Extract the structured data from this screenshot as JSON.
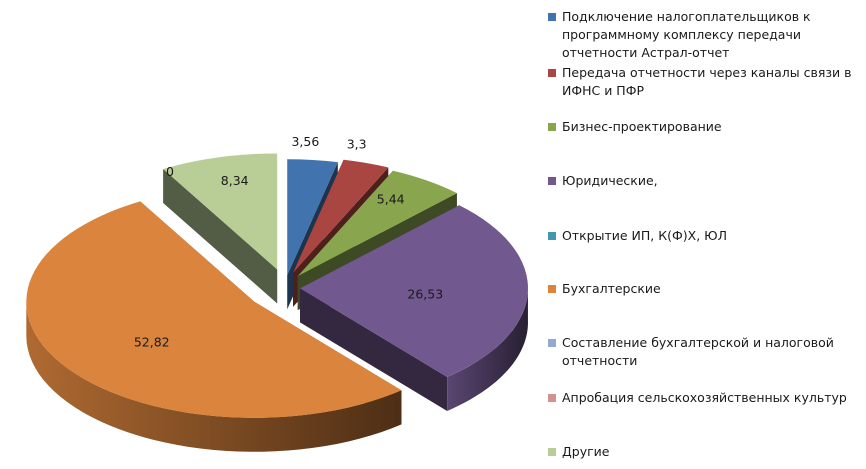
{
  "chart_data": {
    "type": "pie",
    "title": "",
    "exploded": true,
    "three_d": true,
    "legend_position": "right",
    "categories": [
      "Подключение налогоплательщиков к программному комплексу передачи отчетности Астрал-отчет",
      "Передача отчетности через каналы связи в ИФНС и ПФР",
      "Бизнес-проектирование",
      "Юридические,",
      "Открытие ИП, К(Ф)Х, ЮЛ",
      "Бухгалтерские",
      "Составление бухгалтерской и налоговой отчетности",
      "Апробация сельскохозяйственных культур",
      "Другие"
    ],
    "values": [
      3.56,
      3.3,
      5.44,
      26.53,
      0,
      52.82,
      0,
      0,
      8.34
    ],
    "labels": [
      "3,56",
      "3,3",
      "5,44",
      "26,53",
      "",
      "52,82",
      "0",
      "",
      "8,34"
    ],
    "colors": [
      "#4173ae",
      "#aa4642",
      "#89a54e",
      "#71588f",
      "#4198af",
      "#db843d",
      "#93a9cf",
      "#d19392",
      "#b9cd96"
    ]
  }
}
